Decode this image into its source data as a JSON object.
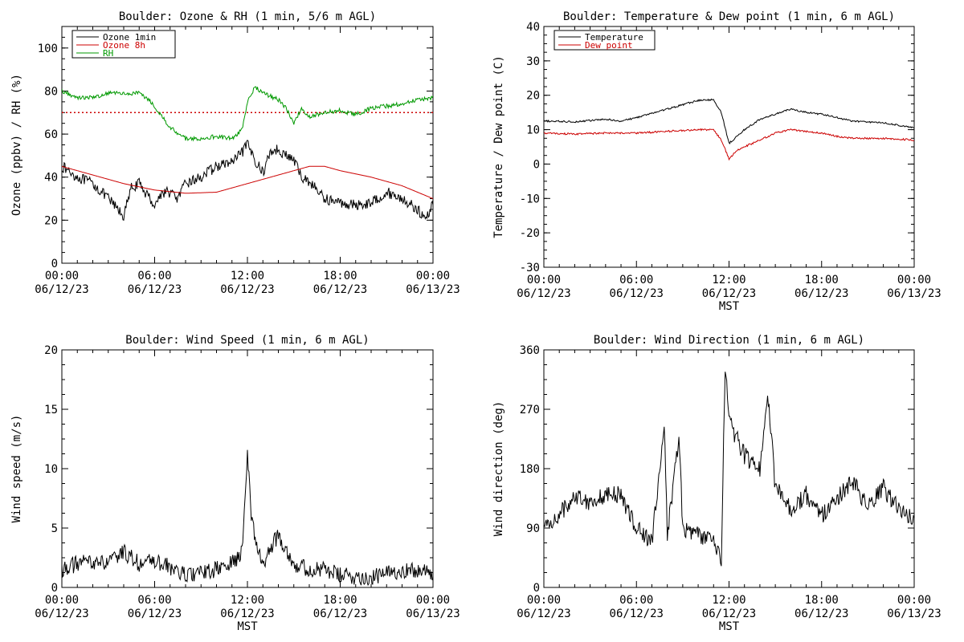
{
  "chart_data": [
    {
      "id": "ozone",
      "type": "line",
      "title": "Boulder: Ozone & RH (1 min, 5/6 m AGL)",
      "ylabel": "Ozone (ppbv) / RH (%)",
      "xlabel": "",
      "ylim": [
        0,
        110
      ],
      "yticks": [
        0,
        20,
        40,
        60,
        80,
        100
      ],
      "xlim": [
        "06/12/23 00:00",
        "06/13/23 00:00"
      ],
      "xticks": [
        {
          "time": "00:00",
          "date": "06/12/23"
        },
        {
          "time": "06:00",
          "date": "06/12/23"
        },
        {
          "time": "12:00",
          "date": "06/12/23"
        },
        {
          "time": "18:00",
          "date": "06/12/23"
        },
        {
          "time": "00:00",
          "date": "06/13/23"
        }
      ],
      "legend": {
        "position": "top-left",
        "entries": [
          {
            "label": "Ozone 1min",
            "color": "#000000"
          },
          {
            "label": "Ozone 8h",
            "color": "#cc0000"
          },
          {
            "label": "RH",
            "color": "#009900"
          }
        ]
      },
      "reference_line": {
        "y": 70,
        "color": "#cc0000",
        "style": "dotted"
      },
      "series": [
        {
          "name": "Ozone 1min",
          "color": "#000000",
          "noise": 2.5,
          "points": [
            [
              "00:00",
              45
            ],
            [
              "01:00",
              40
            ],
            [
              "02:00",
              37
            ],
            [
              "03:00",
              30
            ],
            [
              "04:00",
              22
            ],
            [
              "04:30",
              35
            ],
            [
              "05:00",
              37
            ],
            [
              "05:30",
              32
            ],
            [
              "06:00",
              27
            ],
            [
              "06:30",
              33
            ],
            [
              "07:00",
              33
            ],
            [
              "07:30",
              30
            ],
            [
              "08:00",
              37
            ],
            [
              "09:00",
              40
            ],
            [
              "10:00",
              45
            ],
            [
              "11:00",
              47
            ],
            [
              "11:30",
              50
            ],
            [
              "12:00",
              55
            ],
            [
              "12:30",
              48
            ],
            [
              "13:00",
              42
            ],
            [
              "13:30",
              52
            ],
            [
              "14:00",
              53
            ],
            [
              "14:30",
              50
            ],
            [
              "15:00",
              48
            ],
            [
              "15:30",
              40
            ],
            [
              "16:00",
              38
            ],
            [
              "17:00",
              30
            ],
            [
              "18:00",
              28
            ],
            [
              "19:00",
              27
            ],
            [
              "20:00",
              28
            ],
            [
              "21:00",
              33
            ],
            [
              "22:00",
              30
            ],
            [
              "23:00",
              25
            ],
            [
              "23:30",
              20
            ],
            [
              "24:00",
              28
            ]
          ]
        },
        {
          "name": "Ozone 8h",
          "color": "#cc0000",
          "noise": 0,
          "points": [
            [
              "00:00",
              45
            ],
            [
              "02:00",
              41
            ],
            [
              "04:00",
              37
            ],
            [
              "06:00",
              34
            ],
            [
              "08:00",
              32.5
            ],
            [
              "10:00",
              33
            ],
            [
              "12:00",
              37
            ],
            [
              "14:00",
              41
            ],
            [
              "16:00",
              45
            ],
            [
              "17:00",
              45
            ],
            [
              "18:00",
              43
            ],
            [
              "20:00",
              40
            ],
            [
              "22:00",
              36
            ],
            [
              "24:00",
              30
            ]
          ]
        },
        {
          "name": "RH",
          "color": "#009900",
          "noise": 1.0,
          "points": [
            [
              "00:00",
              80
            ],
            [
              "01:00",
              77
            ],
            [
              "02:00",
              77
            ],
            [
              "03:00",
              79
            ],
            [
              "04:00",
              79
            ],
            [
              "05:00",
              79
            ],
            [
              "05:40",
              76
            ],
            [
              "06:30",
              68
            ],
            [
              "07:00",
              63
            ],
            [
              "08:00",
              58
            ],
            [
              "09:00",
              58
            ],
            [
              "10:00",
              59
            ],
            [
              "11:00",
              58
            ],
            [
              "11:40",
              62
            ],
            [
              "12:00",
              75
            ],
            [
              "12:30",
              82
            ],
            [
              "13:00",
              79
            ],
            [
              "14:00",
              76
            ],
            [
              "14:30",
              72
            ],
            [
              "15:00",
              65
            ],
            [
              "15:30",
              72
            ],
            [
              "16:00",
              68
            ],
            [
              "17:00",
              70
            ],
            [
              "18:00",
              71
            ],
            [
              "19:00",
              69
            ],
            [
              "20:00",
              72
            ],
            [
              "21:00",
              73
            ],
            [
              "22:00",
              74
            ],
            [
              "23:00",
              76
            ],
            [
              "24:00",
              77
            ]
          ]
        }
      ]
    },
    {
      "id": "temp",
      "type": "line",
      "title": "Boulder: Temperature & Dew point (1 min, 6 m AGL)",
      "ylabel": "Temperature / Dew point (C)",
      "xlabel": "MST",
      "ylim": [
        -30,
        40
      ],
      "yticks": [
        -30,
        -20,
        -10,
        0,
        10,
        20,
        30,
        40
      ],
      "xlim": [
        "06/12/23 00:00",
        "06/13/23 00:00"
      ],
      "xticks": [
        {
          "time": "00:00",
          "date": "06/12/23"
        },
        {
          "time": "06:00",
          "date": "06/12/23"
        },
        {
          "time": "12:00",
          "date": "06/12/23"
        },
        {
          "time": "18:00",
          "date": "06/12/23"
        },
        {
          "time": "00:00",
          "date": "06/13/23"
        }
      ],
      "legend": {
        "position": "top-left",
        "entries": [
          {
            "label": "Temperature",
            "color": "#000000"
          },
          {
            "label": "Dew point",
            "color": "#cc0000"
          }
        ]
      },
      "series": [
        {
          "name": "Temperature",
          "color": "#000000",
          "noise": 0.25,
          "points": [
            [
              "00:00",
              12.5
            ],
            [
              "02:00",
              12.3
            ],
            [
              "04:00",
              13
            ],
            [
              "05:00",
              12.5
            ],
            [
              "06:00",
              13.5
            ],
            [
              "08:00",
              16
            ],
            [
              "10:00",
              18.5
            ],
            [
              "11:00",
              18.7
            ],
            [
              "11:30",
              15
            ],
            [
              "12:00",
              6
            ],
            [
              "12:30",
              8
            ],
            [
              "13:00",
              10
            ],
            [
              "14:00",
              13
            ],
            [
              "16:00",
              16
            ],
            [
              "17:00",
              15
            ],
            [
              "18:00",
              14.5
            ],
            [
              "20:00",
              12.5
            ],
            [
              "22:00",
              12
            ],
            [
              "24:00",
              10.5
            ]
          ]
        },
        {
          "name": "Dew point",
          "color": "#cc0000",
          "noise": 0.25,
          "points": [
            [
              "00:00",
              9
            ],
            [
              "02:00",
              8.7
            ],
            [
              "04:00",
              9
            ],
            [
              "06:00",
              9
            ],
            [
              "08:00",
              9.5
            ],
            [
              "10:00",
              10
            ],
            [
              "11:00",
              10
            ],
            [
              "11:30",
              7
            ],
            [
              "12:00",
              1.5
            ],
            [
              "12:30",
              4
            ],
            [
              "13:00",
              5
            ],
            [
              "14:00",
              7
            ],
            [
              "15:00",
              9
            ],
            [
              "16:00",
              10
            ],
            [
              "17:00",
              9.5
            ],
            [
              "18:00",
              9
            ],
            [
              "19:00",
              8
            ],
            [
              "20:00",
              7.5
            ],
            [
              "22:00",
              7.5
            ],
            [
              "24:00",
              7
            ]
          ]
        }
      ]
    },
    {
      "id": "wspd",
      "type": "line",
      "title": "Boulder: Wind Speed (1 min, 6 m AGL)",
      "ylabel": "Wind speed (m/s)",
      "xlabel": "MST",
      "ylim": [
        0,
        20
      ],
      "yticks": [
        0,
        5,
        10,
        15,
        20
      ],
      "xlim": [
        "06/12/23 00:00",
        "06/13/23 00:00"
      ],
      "xticks": [
        {
          "time": "00:00",
          "date": "06/12/23"
        },
        {
          "time": "06:00",
          "date": "06/12/23"
        },
        {
          "time": "12:00",
          "date": "06/12/23"
        },
        {
          "time": "18:00",
          "date": "06/12/23"
        },
        {
          "time": "00:00",
          "date": "06/13/23"
        }
      ],
      "series": [
        {
          "name": "",
          "color": "#000000",
          "noise": 0.7,
          "points": [
            [
              "00:00",
              1.5
            ],
            [
              "01:00",
              2
            ],
            [
              "02:00",
              2.2
            ],
            [
              "03:00",
              2
            ],
            [
              "04:00",
              3
            ],
            [
              "05:00",
              2
            ],
            [
              "06:00",
              2.2
            ],
            [
              "07:00",
              1.7
            ],
            [
              "08:00",
              1
            ],
            [
              "09:00",
              1.2
            ],
            [
              "10:00",
              1.5
            ],
            [
              "11:00",
              2
            ],
            [
              "11:40",
              3
            ],
            [
              "12:00",
              11.5
            ],
            [
              "12:15",
              6
            ],
            [
              "12:40",
              3
            ],
            [
              "13:00",
              2
            ],
            [
              "14:00",
              4.5
            ],
            [
              "15:00",
              2
            ],
            [
              "16:00",
              1.5
            ],
            [
              "17:00",
              1.5
            ],
            [
              "18:00",
              1
            ],
            [
              "20:00",
              0.8
            ],
            [
              "22:00",
              1.5
            ],
            [
              "24:00",
              1.2
            ]
          ]
        }
      ]
    },
    {
      "id": "wdir",
      "type": "line",
      "title": "Boulder: Wind Direction (1 min, 6 m AGL)",
      "ylabel": "Wind direction (deg)",
      "xlabel": "MST",
      "ylim": [
        0,
        360
      ],
      "yticks": [
        0,
        90,
        180,
        270,
        360
      ],
      "xlim": [
        "06/12/23 00:00",
        "06/13/23 00:00"
      ],
      "xticks": [
        {
          "time": "00:00",
          "date": "06/12/23"
        },
        {
          "time": "06:00",
          "date": "06/12/23"
        },
        {
          "time": "12:00",
          "date": "06/12/23"
        },
        {
          "time": "18:00",
          "date": "06/12/23"
        },
        {
          "time": "00:00",
          "date": "06/13/23"
        }
      ],
      "series": [
        {
          "name": "",
          "color": "#000000",
          "noise": 14,
          "points": [
            [
              "00:00",
              90
            ],
            [
              "01:00",
              110
            ],
            [
              "02:00",
              140
            ],
            [
              "03:00",
              130
            ],
            [
              "04:00",
              140
            ],
            [
              "05:00",
              140
            ],
            [
              "06:00",
              90
            ],
            [
              "07:00",
              70
            ],
            [
              "07:50",
              240
            ],
            [
              "08:00",
              80
            ],
            [
              "08:45",
              230
            ],
            [
              "09:00",
              90
            ],
            [
              "10:00",
              80
            ],
            [
              "11:00",
              70
            ],
            [
              "11:30",
              40
            ],
            [
              "11:45",
              340
            ],
            [
              "12:00",
              250
            ],
            [
              "13:00",
              200
            ],
            [
              "14:00",
              180
            ],
            [
              "14:30",
              300
            ],
            [
              "15:00",
              150
            ],
            [
              "16:00",
              120
            ],
            [
              "17:00",
              140
            ],
            [
              "18:00",
              110
            ],
            [
              "20:00",
              160
            ],
            [
              "21:00",
              120
            ],
            [
              "22:00",
              150
            ],
            [
              "23:00",
              120
            ],
            [
              "24:00",
              100
            ]
          ]
        }
      ]
    }
  ]
}
